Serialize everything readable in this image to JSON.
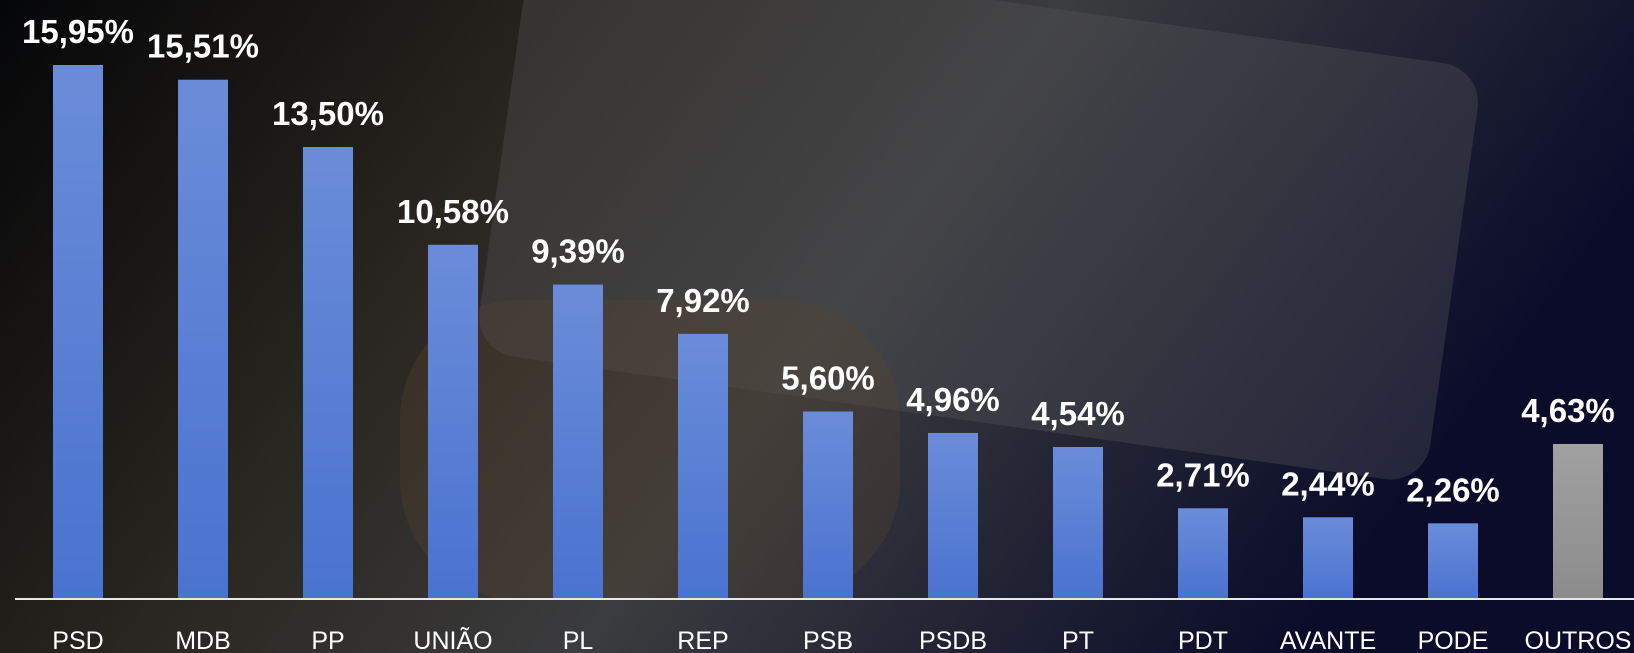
{
  "chart_data": {
    "type": "bar",
    "categories": [
      "PSD",
      "MDB",
      "PP",
      "UNIÃO",
      "PL",
      "REP",
      "PSB",
      "PSDB",
      "PT",
      "PDT",
      "AVANTE",
      "PODE",
      "OUTROS"
    ],
    "values": [
      15.95,
      15.51,
      13.5,
      10.58,
      9.39,
      7.92,
      5.6,
      4.96,
      4.54,
      2.71,
      2.44,
      2.26,
      4.63
    ],
    "value_labels": [
      "15,95%",
      "15,51%",
      "13,50%",
      "10,58%",
      "9,39%",
      "7,92%",
      "5,60%",
      "4,96%",
      "4,54%",
      "2,71%",
      "2,44%",
      "2,26%",
      "4,63%"
    ],
    "colors": [
      "#4a73d0",
      "#4a73d0",
      "#4a73d0",
      "#4a73d0",
      "#4a73d0",
      "#4a73d0",
      "#4a73d0",
      "#4a73d0",
      "#4a73d0",
      "#4a73d0",
      "#4a73d0",
      "#4a73d0",
      "#8c8c8c"
    ]
  }
}
